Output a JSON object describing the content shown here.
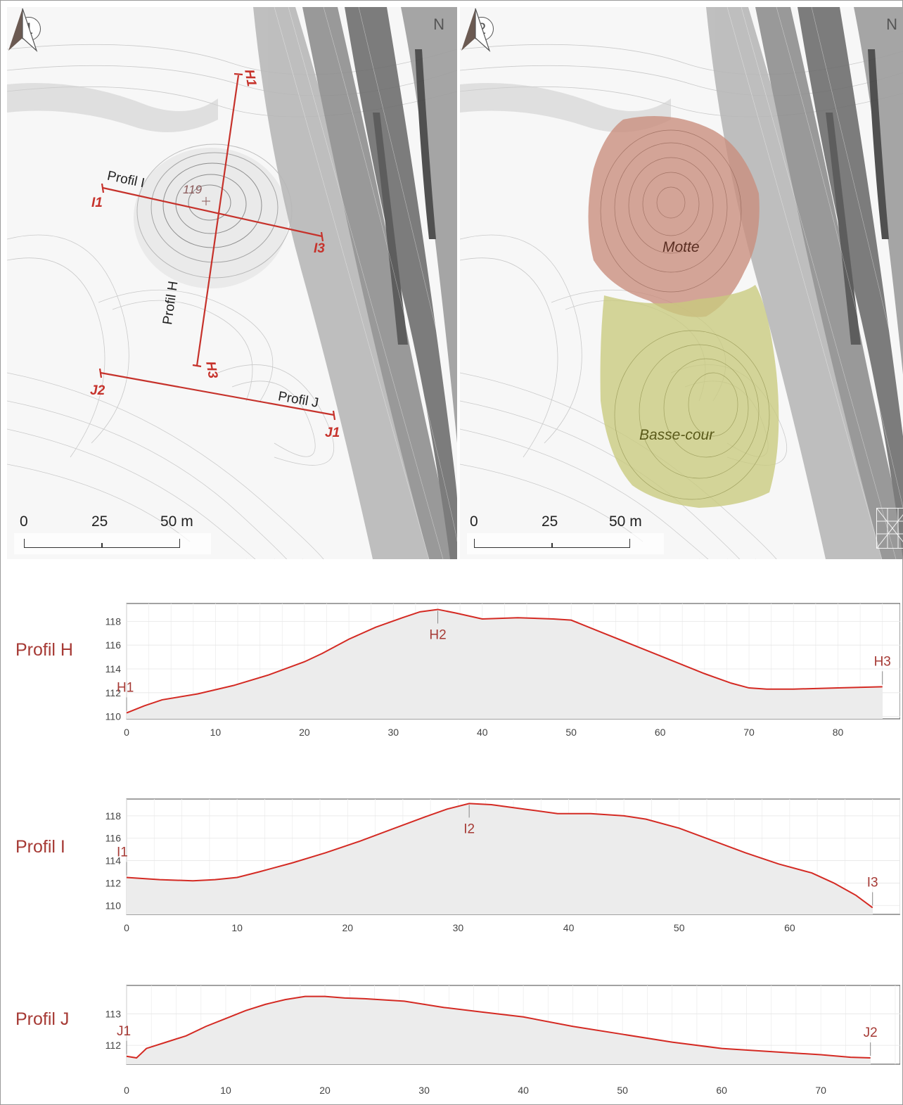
{
  "map1": {
    "number": "1",
    "north": "N",
    "profile_labels": {
      "profil_h": "Profil H",
      "profil_i": "Profil I",
      "profil_j": "Profil J"
    },
    "endpoints": {
      "h1": "H1",
      "h3": "H3",
      "i1": "I1",
      "i3": "I3",
      "j1": "J1",
      "j2": "J2"
    },
    "spot_height": "119",
    "scale": {
      "zero": "0",
      "mid": "25",
      "end": "50 m"
    }
  },
  "map2": {
    "number": "2",
    "north": "N",
    "zones": [
      {
        "label": "Motte",
        "color": "#c98d7c",
        "text_color": "#5a2e22"
      },
      {
        "label": "Basse-cour",
        "color": "#c9cb7e",
        "text_color": "#5a5a1a"
      }
    ],
    "scale": {
      "zero": "0",
      "mid": "25",
      "end": "50 m"
    }
  },
  "colors": {
    "profile_line": "#d42a23",
    "profile_fill": "#ececec",
    "label": "#a63a35",
    "map_red": "#c6322b"
  },
  "chart_data": [
    {
      "type": "area",
      "title": "Profil H",
      "xlim": [
        0,
        87
      ],
      "ylim": [
        109.8,
        119.5
      ],
      "xticks": [
        0,
        10,
        20,
        30,
        40,
        50,
        60,
        70,
        80
      ],
      "yticks": [
        110,
        112,
        114,
        116,
        118
      ],
      "grid": true,
      "x": [
        0,
        2,
        4,
        8,
        12,
        16,
        20,
        22,
        25,
        28,
        31,
        33,
        35,
        37,
        40,
        44,
        48,
        50,
        53,
        57,
        61,
        65,
        68,
        70,
        72,
        75,
        80,
        85
      ],
      "y": [
        110.3,
        110.9,
        111.4,
        111.9,
        112.6,
        113.5,
        114.6,
        115.3,
        116.5,
        117.5,
        118.3,
        118.8,
        119.0,
        118.7,
        118.2,
        118.3,
        118.2,
        118.1,
        117.2,
        116.0,
        114.8,
        113.6,
        112.8,
        112.4,
        112.3,
        112.3,
        112.4,
        112.5
      ],
      "markers": [
        {
          "label": "H1",
          "x": 0,
          "y": 110.3,
          "side": "top"
        },
        {
          "label": "H2",
          "x": 35,
          "y": 119.0,
          "side": "below"
        },
        {
          "label": "H3",
          "x": 85,
          "y": 112.5,
          "side": "top"
        }
      ]
    },
    {
      "type": "area",
      "title": "Profil I",
      "xlim": [
        0,
        70
      ],
      "ylim": [
        109.2,
        119.5
      ],
      "xticks": [
        0,
        10,
        20,
        30,
        40,
        50,
        60
      ],
      "yticks": [
        110,
        112,
        114,
        116,
        118
      ],
      "grid": true,
      "x": [
        0,
        3,
        6,
        8,
        10,
        12,
        15,
        18,
        21,
        24,
        27,
        29,
        31,
        33,
        36,
        39,
        42,
        45,
        47,
        50,
        53,
        56,
        59,
        62,
        64,
        66,
        67.5
      ],
      "y": [
        112.5,
        112.3,
        112.2,
        112.3,
        112.5,
        113.0,
        113.8,
        114.7,
        115.7,
        116.8,
        117.9,
        118.6,
        119.1,
        119.0,
        118.6,
        118.2,
        118.2,
        118.0,
        117.7,
        116.9,
        115.8,
        114.7,
        113.7,
        112.9,
        112.0,
        110.9,
        109.8
      ],
      "markers": [
        {
          "label": "I1",
          "x": 0,
          "y": 112.5,
          "side": "top"
        },
        {
          "label": "I2",
          "x": 31,
          "y": 119.1,
          "side": "below"
        },
        {
          "label": "I3",
          "x": 67.5,
          "y": 109.8,
          "side": "top"
        }
      ]
    },
    {
      "type": "area",
      "title": "Profil J",
      "xlim": [
        0,
        78
      ],
      "ylim": [
        111.4,
        113.9
      ],
      "xticks": [
        0,
        10,
        20,
        30,
        40,
        50,
        60,
        70
      ],
      "yticks": [
        112,
        113
      ],
      "grid": true,
      "x": [
        0,
        1,
        2,
        4,
        6,
        8,
        10,
        12,
        14,
        16,
        18,
        20,
        22,
        24,
        28,
        32,
        36,
        40,
        45,
        50,
        55,
        60,
        65,
        70,
        73,
        75
      ],
      "y": [
        111.65,
        111.6,
        111.9,
        112.1,
        112.3,
        112.6,
        112.85,
        113.1,
        113.3,
        113.45,
        113.55,
        113.55,
        113.5,
        113.48,
        113.4,
        113.2,
        113.05,
        112.9,
        112.6,
        112.35,
        112.1,
        111.9,
        111.8,
        111.7,
        111.62,
        111.6
      ],
      "markers": [
        {
          "label": "J1",
          "x": 0,
          "y": 111.65,
          "side": "top"
        },
        {
          "label": "J2",
          "x": 75,
          "y": 111.6,
          "side": "top"
        }
      ]
    }
  ]
}
